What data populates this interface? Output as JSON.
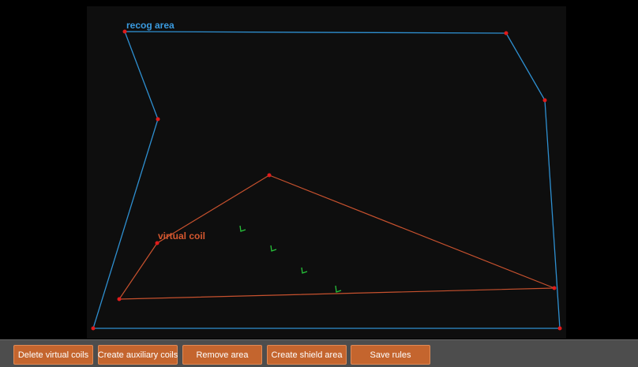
{
  "overlay": {
    "recog_area_label": "recog area",
    "virtual_coil_label": "virtual coil"
  },
  "toolbar": {
    "buttons": [
      "Delete virtual coils",
      "Create auxiliary coils",
      "Remove area",
      "Create shield area",
      "Save rules"
    ]
  }
}
